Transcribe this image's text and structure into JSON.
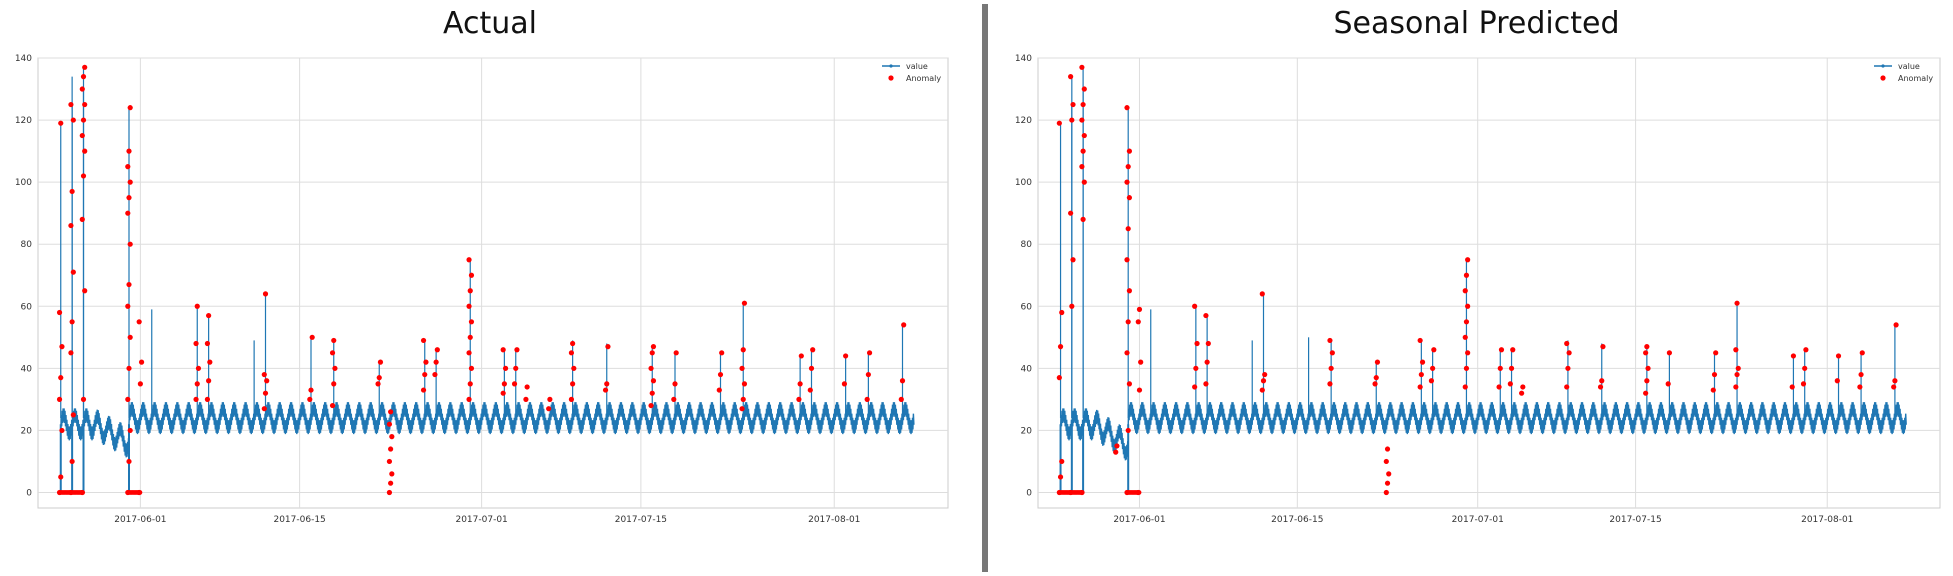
{
  "chart_data": [
    {
      "type": "line",
      "title": "Actual",
      "xlabel": "",
      "ylabel": "",
      "ylim": [
        -5,
        140
      ],
      "yticks": [
        0,
        20,
        40,
        60,
        80,
        100,
        120,
        140
      ],
      "xlim": [
        "2017-05-23",
        "2017-08-11"
      ],
      "xticks": [
        "2017-06-01",
        "2017-06-15",
        "2017-07-01",
        "2017-07-15",
        "2017-08-01"
      ],
      "grid": true,
      "legend_position": "top-right",
      "legend": [
        "value",
        "Anomaly"
      ],
      "colors": {
        "value": "#1f77b4",
        "anomaly": "#ff0000"
      },
      "baseline_segments": [
        {
          "x": [
            "2017-05-25",
            "2017-05-28"
          ],
          "y": [
            22,
            22
          ]
        },
        {
          "x": [
            "2017-05-28",
            "2017-05-31"
          ],
          "y": [
            22,
            16
          ]
        },
        {
          "x": [
            "2017-05-31",
            "2017-08-08"
          ],
          "y": [
            24,
            24
          ]
        }
      ],
      "spikes": [
        {
          "x": "2017-05-25",
          "y": 119
        },
        {
          "x": "2017-05-26",
          "y": 134
        },
        {
          "x": "2017-05-26",
          "y": 125
        },
        {
          "x": "2017-05-27",
          "y": 137
        },
        {
          "x": "2017-05-27",
          "y": 130
        },
        {
          "x": "2017-05-31",
          "y": 124
        },
        {
          "x": "2017-06-02",
          "y": 59
        },
        {
          "x": "2017-06-06",
          "y": 60
        },
        {
          "x": "2017-06-07",
          "y": 57
        },
        {
          "x": "2017-06-11",
          "y": 49
        },
        {
          "x": "2017-06-12",
          "y": 64
        },
        {
          "x": "2017-06-16",
          "y": 50
        },
        {
          "x": "2017-06-18",
          "y": 49
        },
        {
          "x": "2017-06-22",
          "y": 42
        },
        {
          "x": "2017-06-26",
          "y": 49
        },
        {
          "x": "2017-06-27",
          "y": 46
        },
        {
          "x": "2017-06-30",
          "y": 75
        },
        {
          "x": "2017-07-03",
          "y": 46
        },
        {
          "x": "2017-07-04",
          "y": 46
        },
        {
          "x": "2017-07-09",
          "y": 49
        },
        {
          "x": "2017-07-12",
          "y": 48
        },
        {
          "x": "2017-07-16",
          "y": 47
        },
        {
          "x": "2017-07-18",
          "y": 45
        },
        {
          "x": "2017-07-22",
          "y": 45
        },
        {
          "x": "2017-07-24",
          "y": 61
        },
        {
          "x": "2017-07-29",
          "y": 44
        },
        {
          "x": "2017-07-30",
          "y": 46
        },
        {
          "x": "2017-08-02",
          "y": 44
        },
        {
          "x": "2017-08-04",
          "y": 45
        },
        {
          "x": "2017-08-07",
          "y": 54
        }
      ],
      "anomaly_clusters": [
        {
          "x": "2017-05-25",
          "y": [
            0,
            5,
            20,
            30,
            37,
            47,
            58,
            119
          ]
        },
        {
          "x": "2017-05-26",
          "y": [
            0,
            10,
            25,
            45,
            55,
            71,
            86,
            97,
            120,
            125
          ]
        },
        {
          "x": "2017-05-27",
          "y": [
            0,
            30,
            65,
            88,
            102,
            110,
            115,
            120,
            125,
            130,
            134,
            137
          ]
        },
        {
          "x": "2017-05-31",
          "y": [
            0,
            10,
            20,
            30,
            40,
            50,
            60,
            67,
            80,
            90,
            95,
            100,
            105,
            110,
            124
          ]
        },
        {
          "x": "2017-06-01",
          "y": [
            0,
            35,
            42,
            55
          ]
        },
        {
          "x": "2017-06-06",
          "y": [
            30,
            35,
            40,
            48,
            60
          ]
        },
        {
          "x": "2017-06-07",
          "y": [
            30,
            36,
            42,
            48,
            57
          ]
        },
        {
          "x": "2017-06-12",
          "y": [
            27,
            32,
            36,
            38,
            64
          ]
        },
        {
          "x": "2017-06-16",
          "y": [
            30,
            33,
            50
          ]
        },
        {
          "x": "2017-06-18",
          "y": [
            28,
            35,
            40,
            45,
            49
          ]
        },
        {
          "x": "2017-06-22",
          "y": [
            35,
            37,
            42
          ]
        },
        {
          "x": "2017-06-23",
          "y": [
            0,
            3,
            6,
            10,
            14,
            18,
            22,
            26
          ]
        },
        {
          "x": "2017-06-26",
          "y": [
            33,
            38,
            42,
            49
          ]
        },
        {
          "x": "2017-06-27",
          "y": [
            38,
            42,
            46
          ]
        },
        {
          "x": "2017-06-30",
          "y": [
            30,
            35,
            40,
            45,
            50,
            55,
            60,
            65,
            70,
            75
          ]
        },
        {
          "x": "2017-07-03",
          "y": [
            32,
            35,
            40,
            46
          ]
        },
        {
          "x": "2017-07-04",
          "y": [
            35,
            40,
            46
          ]
        },
        {
          "x": "2017-07-05",
          "y": [
            30,
            34
          ]
        },
        {
          "x": "2017-07-07",
          "y": [
            27,
            30
          ]
        },
        {
          "x": "2017-07-09",
          "y": [
            30,
            35,
            40,
            45,
            48
          ]
        },
        {
          "x": "2017-07-12",
          "y": [
            33,
            35,
            47
          ]
        },
        {
          "x": "2017-07-16",
          "y": [
            28,
            32,
            36,
            40,
            45,
            47
          ]
        },
        {
          "x": "2017-07-18",
          "y": [
            30,
            35,
            45
          ]
        },
        {
          "x": "2017-07-22",
          "y": [
            33,
            38,
            45
          ]
        },
        {
          "x": "2017-07-24",
          "y": [
            27,
            30,
            35,
            40,
            46,
            61
          ]
        },
        {
          "x": "2017-07-29",
          "y": [
            30,
            35,
            44
          ]
        },
        {
          "x": "2017-07-30",
          "y": [
            33,
            40,
            46
          ]
        },
        {
          "x": "2017-08-02",
          "y": [
            35,
            44
          ]
        },
        {
          "x": "2017-08-04",
          "y": [
            30,
            38,
            45
          ]
        },
        {
          "x": "2017-08-07",
          "y": [
            30,
            36,
            54
          ]
        }
      ]
    },
    {
      "type": "line",
      "title": "Seasonal Predicted",
      "xlabel": "",
      "ylabel": "",
      "ylim": [
        -5,
        140
      ],
      "yticks": [
        0,
        20,
        40,
        60,
        80,
        100,
        120,
        140
      ],
      "xlim": [
        "2017-05-23",
        "2017-08-11"
      ],
      "xticks": [
        "2017-06-01",
        "2017-06-15",
        "2017-07-01",
        "2017-07-15",
        "2017-08-01"
      ],
      "grid": true,
      "legend_position": "top-right",
      "legend": [
        "value",
        "Anomaly"
      ],
      "colors": {
        "value": "#1f77b4",
        "anomaly": "#ff0000"
      },
      "baseline_segments": [
        {
          "x": [
            "2017-05-25",
            "2017-05-28"
          ],
          "y": [
            22,
            22
          ]
        },
        {
          "x": [
            "2017-05-28",
            "2017-05-31"
          ],
          "y": [
            22,
            15
          ]
        },
        {
          "x": [
            "2017-05-31",
            "2017-08-08"
          ],
          "y": [
            24,
            24
          ]
        }
      ],
      "spikes": [
        {
          "x": "2017-05-25",
          "y": 119
        },
        {
          "x": "2017-05-26",
          "y": 134
        },
        {
          "x": "2017-05-26",
          "y": 125
        },
        {
          "x": "2017-05-27",
          "y": 137
        },
        {
          "x": "2017-05-27",
          "y": 130
        },
        {
          "x": "2017-05-31",
          "y": 124
        },
        {
          "x": "2017-06-02",
          "y": 59
        },
        {
          "x": "2017-06-06",
          "y": 60
        },
        {
          "x": "2017-06-07",
          "y": 57
        },
        {
          "x": "2017-06-11",
          "y": 49
        },
        {
          "x": "2017-06-12",
          "y": 64
        },
        {
          "x": "2017-06-16",
          "y": 50
        },
        {
          "x": "2017-06-18",
          "y": 49
        },
        {
          "x": "2017-06-22",
          "y": 42
        },
        {
          "x": "2017-06-26",
          "y": 49
        },
        {
          "x": "2017-06-27",
          "y": 46
        },
        {
          "x": "2017-06-30",
          "y": 75
        },
        {
          "x": "2017-07-03",
          "y": 46
        },
        {
          "x": "2017-07-04",
          "y": 46
        },
        {
          "x": "2017-07-09",
          "y": 49
        },
        {
          "x": "2017-07-12",
          "y": 48
        },
        {
          "x": "2017-07-16",
          "y": 47
        },
        {
          "x": "2017-07-18",
          "y": 45
        },
        {
          "x": "2017-07-22",
          "y": 45
        },
        {
          "x": "2017-07-24",
          "y": 61
        },
        {
          "x": "2017-07-29",
          "y": 44
        },
        {
          "x": "2017-07-30",
          "y": 46
        },
        {
          "x": "2017-08-02",
          "y": 44
        },
        {
          "x": "2017-08-04",
          "y": 45
        },
        {
          "x": "2017-08-07",
          "y": 54
        }
      ],
      "anomaly_clusters": [
        {
          "x": "2017-05-25",
          "y": [
            0,
            5,
            10,
            37,
            47,
            58,
            119
          ]
        },
        {
          "x": "2017-05-26",
          "y": [
            0,
            60,
            75,
            90,
            120,
            125,
            134
          ]
        },
        {
          "x": "2017-05-27",
          "y": [
            0,
            88,
            100,
            105,
            110,
            115,
            120,
            125,
            130,
            137
          ]
        },
        {
          "x": "2017-05-30",
          "y": [
            13,
            15
          ]
        },
        {
          "x": "2017-05-31",
          "y": [
            0,
            20,
            35,
            45,
            55,
            65,
            75,
            85,
            95,
            100,
            105,
            110,
            124
          ]
        },
        {
          "x": "2017-06-01",
          "y": [
            0,
            33,
            42,
            55,
            59
          ]
        },
        {
          "x": "2017-06-06",
          "y": [
            34,
            40,
            48,
            60
          ]
        },
        {
          "x": "2017-06-07",
          "y": [
            35,
            42,
            48,
            57
          ]
        },
        {
          "x": "2017-06-12",
          "y": [
            33,
            36,
            38,
            64
          ]
        },
        {
          "x": "2017-06-18",
          "y": [
            35,
            40,
            45,
            49
          ]
        },
        {
          "x": "2017-06-22",
          "y": [
            35,
            37,
            42
          ]
        },
        {
          "x": "2017-06-23",
          "y": [
            0,
            3,
            6,
            10,
            14
          ]
        },
        {
          "x": "2017-06-26",
          "y": [
            34,
            38,
            42,
            49
          ]
        },
        {
          "x": "2017-06-27",
          "y": [
            36,
            40,
            46
          ]
        },
        {
          "x": "2017-06-30",
          "y": [
            34,
            40,
            45,
            50,
            55,
            60,
            65,
            70,
            75
          ]
        },
        {
          "x": "2017-07-03",
          "y": [
            34,
            40,
            46
          ]
        },
        {
          "x": "2017-07-04",
          "y": [
            35,
            40,
            46
          ]
        },
        {
          "x": "2017-07-05",
          "y": [
            32,
            34
          ]
        },
        {
          "x": "2017-07-09",
          "y": [
            34,
            40,
            45,
            48
          ]
        },
        {
          "x": "2017-07-12",
          "y": [
            34,
            36,
            47
          ]
        },
        {
          "x": "2017-07-16",
          "y": [
            32,
            36,
            40,
            45,
            47
          ]
        },
        {
          "x": "2017-07-18",
          "y": [
            35,
            45
          ]
        },
        {
          "x": "2017-07-22",
          "y": [
            33,
            38,
            45
          ]
        },
        {
          "x": "2017-07-24",
          "y": [
            34,
            38,
            40,
            46,
            61
          ]
        },
        {
          "x": "2017-07-29",
          "y": [
            34,
            44
          ]
        },
        {
          "x": "2017-07-30",
          "y": [
            35,
            40,
            46
          ]
        },
        {
          "x": "2017-08-02",
          "y": [
            36,
            44
          ]
        },
        {
          "x": "2017-08-04",
          "y": [
            34,
            38,
            45
          ]
        },
        {
          "x": "2017-08-07",
          "y": [
            34,
            36,
            54
          ]
        }
      ]
    }
  ]
}
